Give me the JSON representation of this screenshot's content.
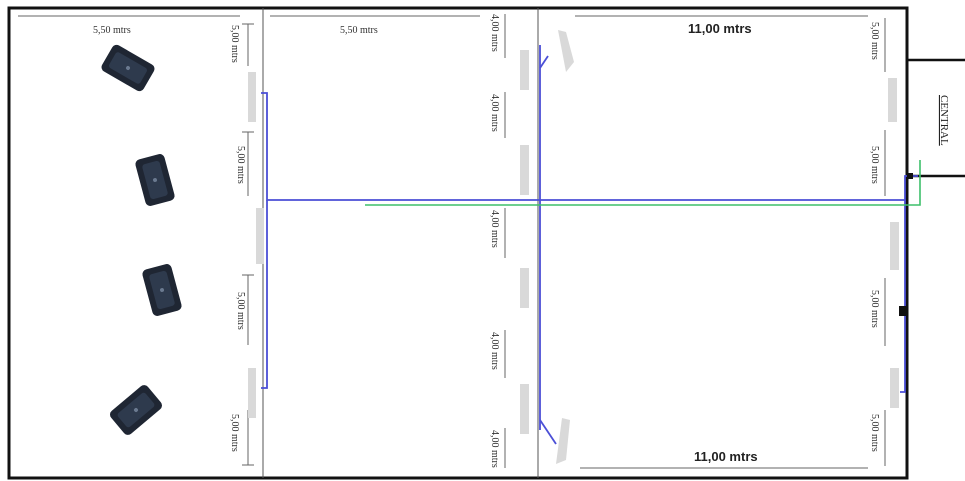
{
  "plan": {
    "dimensions": {
      "room1_width": "5,50 mtrs",
      "room2_width": "5,50 mtrs",
      "room3_width_top": "11,00 mtrs",
      "room3_width_bottom": "11,00 mtrs",
      "wall1_seg1": "5,00 mtrs",
      "wall1_seg2": "5,00 mtrs",
      "wall1_seg3": "5,00 mtrs",
      "wall1_seg4": "5,00 mtrs",
      "wall2_seg1": "4,00 mtrs",
      "wall2_seg2": "4,00 mtrs",
      "wall2_seg3": "4,00 mtrs",
      "wall2_seg4": "4,00 mtrs",
      "wall2_seg5": "4,00 mtrs",
      "wall3_seg1": "5,00 mtrs",
      "wall3_seg2": "5,00 mtrs",
      "wall3_seg3": "5,00 mtrs",
      "wall3_seg4": "5,00 mtrs"
    },
    "central_label": "CENTRAL",
    "colors": {
      "wall": "#111111",
      "cable_blue": "#4b4fd6",
      "cable_green": "#3dbf6a",
      "device": "#1f2633",
      "fixture": "#d9d9d9"
    },
    "devices": [
      "camera-device",
      "camera-device",
      "camera-device",
      "camera-device"
    ]
  }
}
